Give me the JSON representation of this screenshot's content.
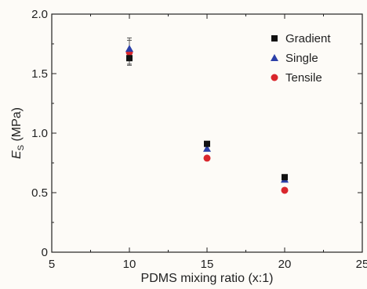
{
  "chart_data": {
    "type": "scatter",
    "xlabel": "PDMS mixing ratio (x:1)",
    "ylabel_main": "E",
    "ylabel_sub": "S",
    "ylabel_unit": " (MPa)",
    "xlim": [
      5,
      25
    ],
    "ylim": [
      0,
      2.0
    ],
    "xticks": [
      "5",
      "10",
      "15",
      "20",
      "25"
    ],
    "yticks": [
      "0",
      "0.5",
      "1.0",
      "1.5",
      "2.0"
    ],
    "grid": false,
    "legend_position": "top-right",
    "series": [
      {
        "name": "Gradient",
        "marker": "square",
        "color": "#111111",
        "x": [
          10,
          15,
          20
        ],
        "y": [
          1.63,
          0.91,
          0.63
        ],
        "err": [
          0.06,
          0.02,
          0.02
        ]
      },
      {
        "name": "Single",
        "marker": "triangle",
        "color": "#2b3fa8",
        "x": [
          10,
          15,
          20
        ],
        "y": [
          1.71,
          0.87,
          0.61
        ],
        "err": [
          0.09,
          0.02,
          0.02
        ]
      },
      {
        "name": "Tensile",
        "marker": "circle",
        "color": "#d9262c",
        "x": [
          10,
          15,
          20
        ],
        "y": [
          1.68,
          0.79,
          0.52
        ],
        "err": [
          0.1,
          0.01,
          0.01
        ]
      }
    ]
  }
}
